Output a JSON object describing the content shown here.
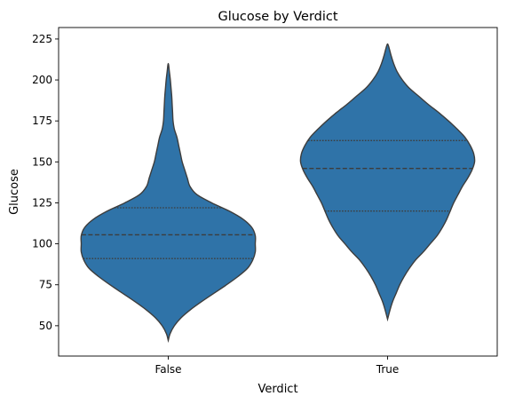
{
  "chart_data": {
    "type": "violin",
    "title": "Glucose by Verdict",
    "xlabel": "Verdict",
    "ylabel": "Glucose",
    "categories": [
      "False",
      "True"
    ],
    "ylim": [
      31.5,
      232
    ],
    "yticks": [
      50,
      75,
      100,
      125,
      150,
      175,
      200,
      225
    ],
    "grid": false,
    "fill_color": "#2f73a8",
    "edge_color": "#3d3d3d",
    "violins": [
      {
        "category": "False",
        "quartiles": [
          91,
          105.5,
          122
        ],
        "range": [
          41,
          210
        ],
        "profile": [
          [
            41,
            0.0
          ],
          [
            45,
            0.02
          ],
          [
            50,
            0.07
          ],
          [
            55,
            0.15
          ],
          [
            60,
            0.26
          ],
          [
            65,
            0.39
          ],
          [
            70,
            0.53
          ],
          [
            75,
            0.67
          ],
          [
            80,
            0.8
          ],
          [
            85,
            0.91
          ],
          [
            90,
            0.97
          ],
          [
            95,
            1.0
          ],
          [
            100,
            1.0
          ],
          [
            105,
            1.0
          ],
          [
            110,
            0.96
          ],
          [
            115,
            0.86
          ],
          [
            120,
            0.7
          ],
          [
            125,
            0.5
          ],
          [
            130,
            0.33
          ],
          [
            135,
            0.25
          ],
          [
            140,
            0.22
          ],
          [
            145,
            0.19
          ],
          [
            150,
            0.16
          ],
          [
            155,
            0.14
          ],
          [
            160,
            0.12
          ],
          [
            165,
            0.1
          ],
          [
            170,
            0.07
          ],
          [
            175,
            0.055
          ],
          [
            180,
            0.05
          ],
          [
            185,
            0.045
          ],
          [
            190,
            0.04
          ],
          [
            195,
            0.032
          ],
          [
            200,
            0.024
          ],
          [
            205,
            0.013
          ],
          [
            210,
            0.0
          ]
        ]
      },
      {
        "category": "True",
        "quartiles": [
          120,
          146,
          163
        ],
        "range": [
          54,
          222
        ],
        "profile": [
          [
            54,
            0.0
          ],
          [
            60,
            0.03
          ],
          [
            65,
            0.06
          ],
          [
            70,
            0.1
          ],
          [
            75,
            0.14
          ],
          [
            80,
            0.19
          ],
          [
            85,
            0.25
          ],
          [
            90,
            0.32
          ],
          [
            95,
            0.41
          ],
          [
            100,
            0.49
          ],
          [
            105,
            0.57
          ],
          [
            110,
            0.63
          ],
          [
            115,
            0.68
          ],
          [
            120,
            0.72
          ],
          [
            125,
            0.76
          ],
          [
            130,
            0.81
          ],
          [
            135,
            0.86
          ],
          [
            140,
            0.92
          ],
          [
            145,
            0.97
          ],
          [
            150,
            1.0
          ],
          [
            155,
            0.99
          ],
          [
            160,
            0.95
          ],
          [
            165,
            0.89
          ],
          [
            170,
            0.8
          ],
          [
            175,
            0.7
          ],
          [
            180,
            0.59
          ],
          [
            185,
            0.47
          ],
          [
            190,
            0.36
          ],
          [
            195,
            0.25
          ],
          [
            200,
            0.17
          ],
          [
            205,
            0.11
          ],
          [
            210,
            0.07
          ],
          [
            215,
            0.04
          ],
          [
            219,
            0.02
          ],
          [
            222,
            0.0
          ]
        ]
      }
    ]
  }
}
